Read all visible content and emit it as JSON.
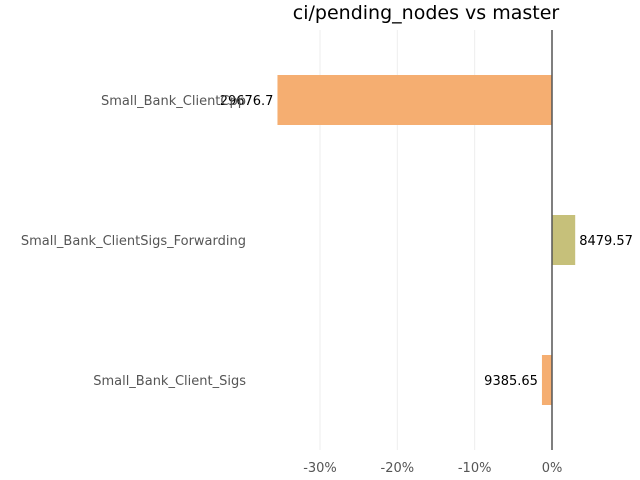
{
  "chart_data": {
    "type": "bar",
    "orientation": "horizontal",
    "title": "ci/pending_nodes vs master",
    "xlabel": "",
    "ylabel": "",
    "categories": [
      "Small_Bank_ClientCpp",
      "Small_Bank_ClientSigs_Forwarding",
      "Small_Bank_Client_Sigs"
    ],
    "values": [
      -35.5,
      3.0,
      -1.3
    ],
    "value_labels": [
      "29676.7",
      "8479.57",
      "9385.65"
    ],
    "bar_colors": [
      "#f5ae71",
      "#c6c07a",
      "#f5ae71"
    ],
    "xlim": [
      -40,
      0
    ],
    "xticks": [
      -30,
      -20,
      -10,
      0
    ],
    "xtick_labels": [
      "-30%",
      "-20%",
      "-10%",
      "0%"
    ],
    "grid": true,
    "legend": "none"
  }
}
